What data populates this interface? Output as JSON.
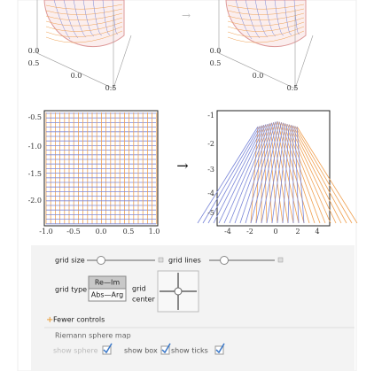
{
  "top_plots": {
    "left_labels": [
      "0.0",
      "0.5",
      "0.0",
      "0.5"
    ],
    "right_labels": [
      "0.0",
      "0.5",
      "0.0",
      "0.5"
    ],
    "arrow": "→"
  },
  "plots": {
    "left": {
      "yticks": [
        "-0.5",
        "-1.0",
        "-1.5",
        "-2.0"
      ],
      "xticks": [
        "-1.0",
        "-0.5",
        "0.0",
        "0.5",
        "1.0"
      ]
    },
    "arrow": "→",
    "right": {
      "yticks": [
        "-1",
        "-2",
        "-3",
        "-4",
        "-5"
      ],
      "xticks": [
        "-4",
        "-2",
        "0",
        "2",
        "4"
      ]
    }
  },
  "controls": {
    "grid_size": "grid size",
    "grid_lines": "grid lines",
    "grid_type": "grid type",
    "options": [
      "Re—Im",
      "Abs—Arg"
    ],
    "grid_center": [
      "grid",
      "center"
    ],
    "fewer": "Fewer controls",
    "section": "Riemann sphere map",
    "checkboxes": [
      "show sphere",
      "show box",
      "show ticks"
    ]
  }
}
